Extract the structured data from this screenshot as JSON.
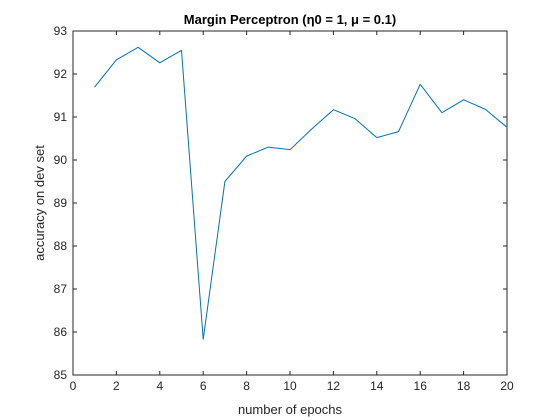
{
  "chart_data": {
    "type": "line",
    "title": "Margin Perceptron (η0 = 1, μ = 0.1)",
    "xlabel": "number of epochs",
    "ylabel": "accuracy on dev set",
    "xlim": [
      0,
      20
    ],
    "ylim": [
      85,
      93
    ],
    "x_ticks": [
      0,
      2,
      4,
      6,
      8,
      10,
      12,
      14,
      16,
      18,
      20
    ],
    "y_ticks": [
      85,
      86,
      87,
      88,
      89,
      90,
      91,
      92,
      93
    ],
    "grid": false,
    "series": [
      {
        "color": "#0072BD",
        "x": [
          1,
          2,
          3,
          4,
          5,
          6,
          7,
          8,
          9,
          10,
          11,
          12,
          13,
          14,
          15,
          16,
          17,
          18,
          19,
          20
        ],
        "y": [
          91.7,
          92.33,
          92.62,
          92.26,
          92.55,
          85.83,
          89.5,
          90.09,
          90.3,
          90.24,
          90.72,
          91.17,
          90.96,
          90.52,
          90.66,
          91.76,
          91.1,
          91.4,
          91.18,
          90.76
        ]
      }
    ]
  }
}
